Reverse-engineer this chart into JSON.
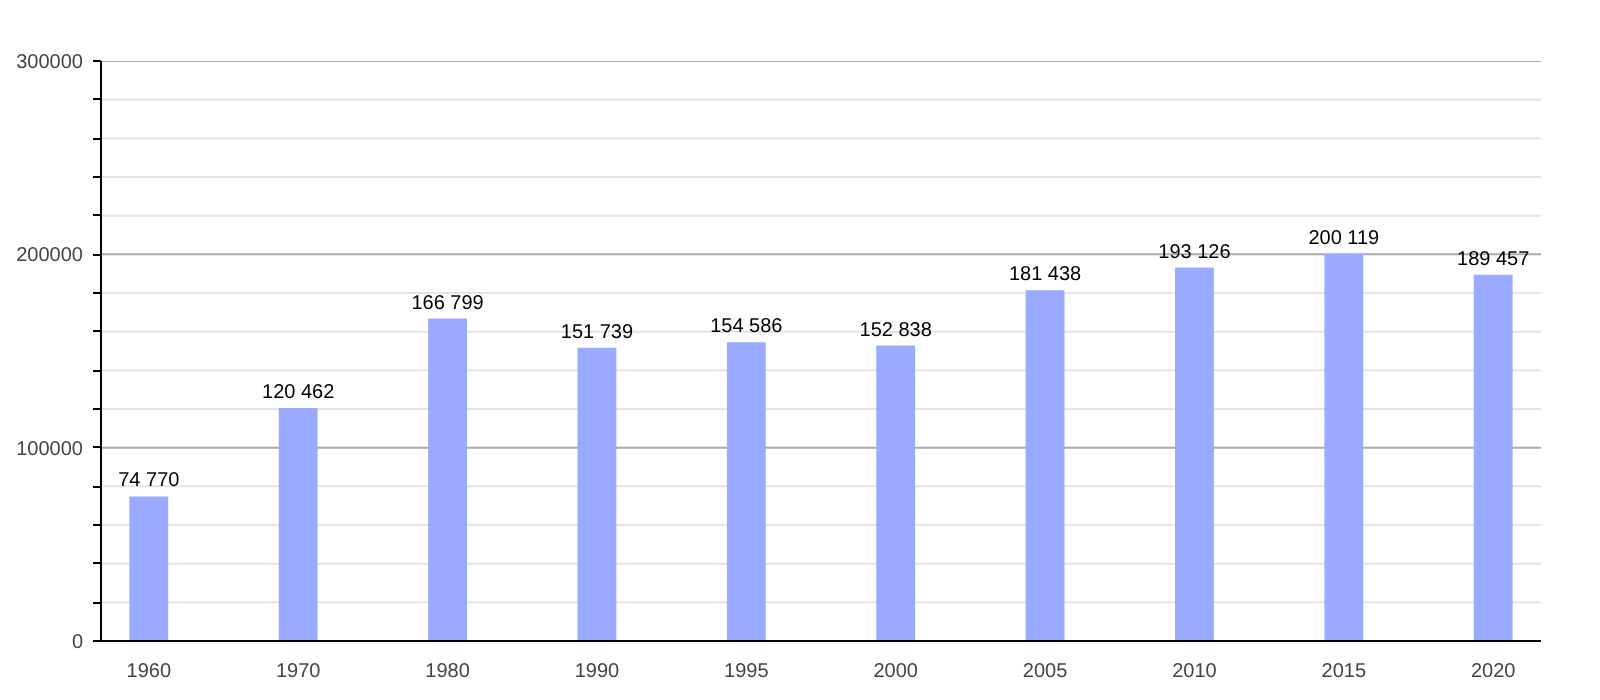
{
  "chart_data": {
    "type": "bar",
    "categories": [
      "1960",
      "1970",
      "1980",
      "1990",
      "1995",
      "2000",
      "2005",
      "2010",
      "2015",
      "2020"
    ],
    "values": [
      74770,
      120462,
      166799,
      151739,
      154586,
      152838,
      181438,
      193126,
      200119,
      189457
    ],
    "value_labels": [
      "74 770",
      "120 462",
      "166 799",
      "151 739",
      "154 586",
      "152 838",
      "181 438",
      "193 126",
      "200 119",
      "189 457"
    ],
    "color": "#99aaff",
    "ylim": [
      0,
      300000
    ],
    "yticks": [
      0,
      {
        "value": 20000,
        "label": null
      },
      {
        "value": 40000,
        "label": null
      },
      {
        "value": 60000,
        "label": null
      },
      {
        "value": 80000,
        "label": null
      },
      100000,
      {
        "value": 120000,
        "label": null
      },
      {
        "value": 140000,
        "label": null
      },
      {
        "value": 160000,
        "label": null
      },
      {
        "value": 180000,
        "label": null
      },
      200000,
      {
        "value": 220000,
        "label": null
      },
      {
        "value": 240000,
        "label": null
      },
      {
        "value": 260000,
        "label": null
      },
      {
        "value": 280000,
        "label": null
      },
      300000
    ],
    "grid": "y"
  }
}
